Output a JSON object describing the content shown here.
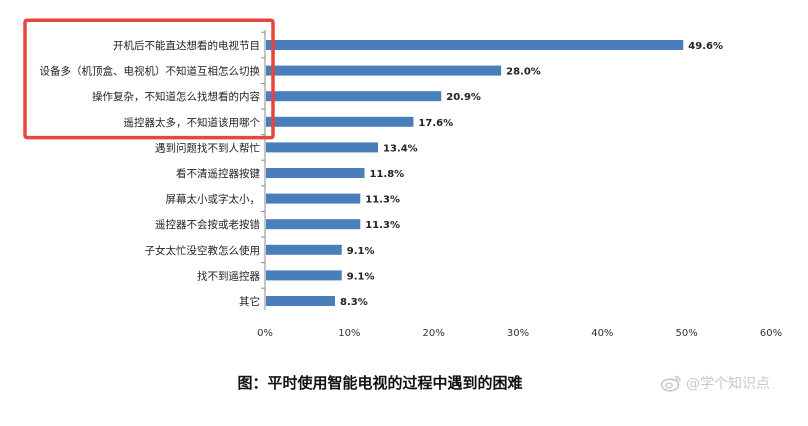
{
  "chart_data": {
    "type": "bar",
    "orientation": "horizontal",
    "categories": [
      "开机后不能直达想看的电视节目",
      "设备多（机顶盒、电视机）不知道互相怎么切换",
      "操作复杂，不知道怎么找想看的内容",
      "遥控器太多，不知道该用哪个",
      "遇到问题找不到人帮忙",
      "看不清遥控器按键",
      "屏幕太小或字太小，",
      "遥控器不会按或老按错",
      "子女太忙没空教怎么使用",
      "找不到遥控器",
      "其它"
    ],
    "values": [
      49.6,
      28.0,
      20.9,
      17.6,
      13.4,
      11.8,
      11.3,
      11.3,
      9.1,
      9.1,
      8.3
    ],
    "value_labels": [
      "49.6%",
      "28.0%",
      "20.9%",
      "17.6%",
      "13.4%",
      "11.8%",
      "11.3%",
      "11.3%",
      "9.1%",
      "9.1%",
      "8.3%"
    ],
    "xlim": [
      0,
      60
    ],
    "x_ticks": [
      0,
      10,
      20,
      30,
      40,
      50,
      60
    ],
    "x_tick_labels": [
      "0%",
      "10%",
      "20%",
      "30%",
      "40%",
      "50%",
      "60%"
    ],
    "bar_color": "#4a7ebb",
    "highlight_color": "#e8453c",
    "highlighted_categories": 4,
    "grid": false
  },
  "caption": "图：平时使用智能电视的过程中遇到的困难",
  "watermark": "@学个知识点",
  "watermark_icon": "weibo-icon"
}
